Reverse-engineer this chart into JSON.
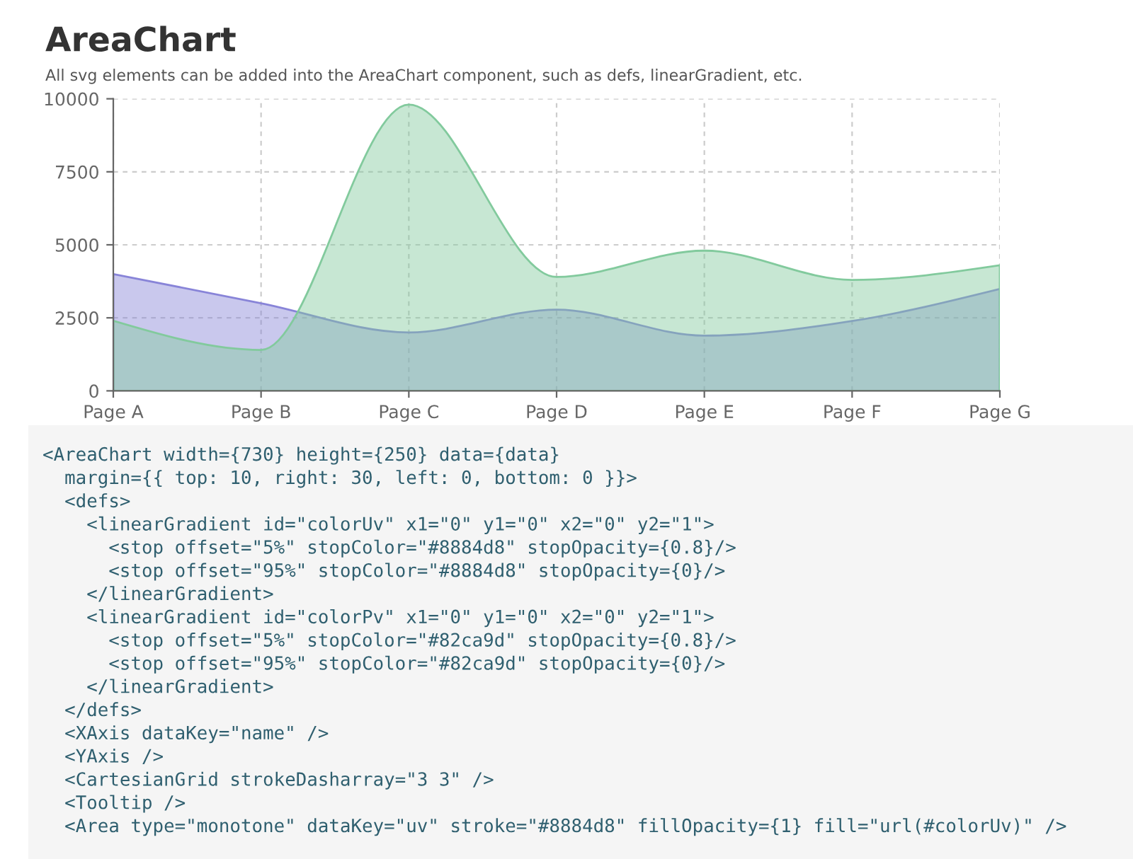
{
  "chart_data": {
    "type": "area",
    "title": "AreaChart",
    "subtitle": "All svg elements can be added into the AreaChart component, such as defs, linearGradient, etc.",
    "categories": [
      "Page A",
      "Page B",
      "Page C",
      "Page D",
      "Page E",
      "Page F",
      "Page G"
    ],
    "series": [
      {
        "color": "#8884d8",
        "values": [
          4000,
          3000,
          2000,
          2780,
          1890,
          2390,
          3490
        ]
      },
      {
        "color": "#82ca9d",
        "values": [
          2400,
          1400,
          9800,
          3900,
          4800,
          3800,
          4300
        ]
      }
    ],
    "ylim": [
      0,
      10000
    ],
    "yticks": [
      0,
      2500,
      5000,
      7500,
      10000
    ],
    "grid": true,
    "legend": false,
    "annotations": [
      "<AreaChart width={730} height={250} data={data}",
      "  margin={{ top: 10, right: 30, left: 0, bottom: 0 }}>",
      "  <defs>",
      "    <linearGradient id=\"colorUv\" x1=\"0\" y1=\"0\" x2=\"0\" y2=\"1\">",
      "      <stop offset=\"5%\" stopColor=\"#8884d8\" stopOpacity={0.8}/>",
      "      <stop offset=\"95%\" stopColor=\"#8884d8\" stopOpacity={0}/>",
      "    </linearGradient>",
      "    <linearGradient id=\"colorPv\" x1=\"0\" y1=\"0\" x2=\"0\" y2=\"1\">",
      "      <stop offset=\"5%\" stopColor=\"#82ca9d\" stopOpacity={0.8}/>",
      "      <stop offset=\"95%\" stopColor=\"#82ca9d\" stopOpacity={0}/>",
      "    </linearGradient>",
      "  </defs>",
      "  <XAxis dataKey=\"name\" />",
      "  <YAxis />",
      "  <CartesianGrid strokeDasharray=\"3 3\" />",
      "  <Tooltip />",
      "  <Area type=\"monotone\" dataKey=\"uv\" stroke=\"#8884d8\" fillOpacity={1} fill=\"url(#colorUv)\" />"
    ]
  }
}
